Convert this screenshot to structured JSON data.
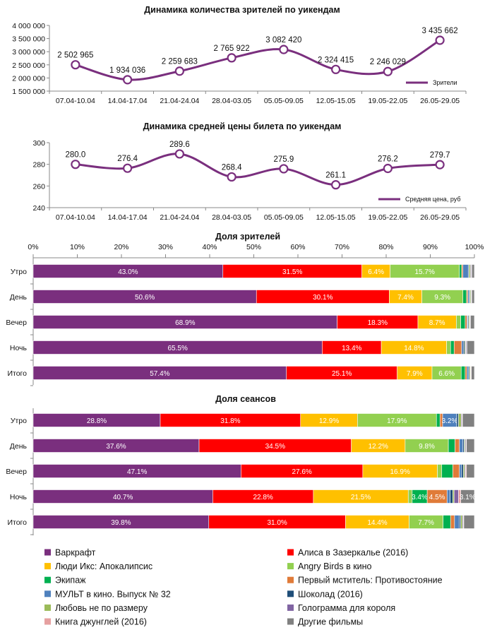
{
  "chart_data": [
    {
      "type": "line",
      "title": "Динамика количества зрителей по уикендам",
      "categories": [
        "07.04-10.04",
        "14.04-17.04",
        "21.04-24.04",
        "28.04-03.05",
        "05.05-09.05",
        "12.05-15.05",
        "19.05-22.05",
        "26.05-29.05"
      ],
      "values": [
        2502965,
        1934036,
        2259683,
        2765922,
        3082420,
        2324415,
        2246029,
        3435662
      ],
      "value_labels": [
        "2 502 965",
        "1 934 036",
        "2 259 683",
        "2 765 922",
        "3 082 420",
        "2 324 415",
        "2 246 029",
        "3 435 662"
      ],
      "yticks": [
        "4 000 000",
        "3 500 000",
        "3 000 000",
        "2 500 000",
        "2 000 000",
        "1 500 000"
      ],
      "ylim": [
        1500000,
        4000000
      ],
      "legend": "Зрители",
      "color": "#7a2f7e"
    },
    {
      "type": "line",
      "title": "Динамика средней цены билета по уикендам",
      "categories": [
        "07.04-10.04",
        "14.04-17.04",
        "21.04-24.04",
        "28.04-03.05",
        "05.05-09.05",
        "12.05-15.05",
        "19.05-22.05",
        "26.05-29.05"
      ],
      "values": [
        280.0,
        276.4,
        289.6,
        268.4,
        275.9,
        261.1,
        276.2,
        279.7
      ],
      "value_labels": [
        "280.0",
        "276.4",
        "289.6",
        "268.4",
        "275.9",
        "261.1",
        "276.2",
        "279.7"
      ],
      "yticks": [
        "300",
        "280",
        "260",
        "240"
      ],
      "ylim": [
        240,
        300
      ],
      "legend": "Средняя цена, руб",
      "color": "#7a2f7e"
    },
    {
      "type": "bar",
      "orientation": "horizontal-stacked-100",
      "title": "Доля зрителей",
      "xticks": [
        "0%",
        "10%",
        "20%",
        "30%",
        "40%",
        "50%",
        "60%",
        "70%",
        "80%",
        "90%",
        "100%"
      ],
      "categories": [
        "Утро",
        "День",
        "Вечер",
        "Ночь",
        "Итого"
      ],
      "rows": [
        {
          "values": [
            43.0,
            31.5,
            6.4,
            15.7,
            0.5,
            0.3,
            1.2,
            0.2,
            0.3,
            0.2,
            0.1,
            0.6
          ],
          "labels": [
            "43.0%",
            "31.5%",
            "6.4%",
            "15.7%",
            "",
            "",
            "",
            "",
            "",
            "",
            "",
            ""
          ]
        },
        {
          "values": [
            50.6,
            30.1,
            7.4,
            9.3,
            0.8,
            0.3,
            0.3,
            0.2,
            0.2,
            0.1,
            0.1,
            0.6
          ],
          "labels": [
            "50.6%",
            "30.1%",
            "7.4%",
            "9.3%",
            "",
            "",
            "",
            "",
            "",
            "",
            "",
            ""
          ]
        },
        {
          "values": [
            68.9,
            18.3,
            8.7,
            1.0,
            1.0,
            0.4,
            0.2,
            0.2,
            0.2,
            0.1,
            0.1,
            0.9
          ],
          "labels": [
            "68.9%",
            "18.3%",
            "8.7%",
            "",
            "",
            "",
            "",
            "",
            "",
            "",
            "",
            ""
          ]
        },
        {
          "values": [
            65.5,
            13.4,
            14.8,
            0.9,
            0.8,
            1.7,
            0.4,
            0.3,
            0.2,
            0.2,
            0.1,
            1.7
          ],
          "labels": [
            "65.5%",
            "13.4%",
            "14.8%",
            "",
            "",
            "",
            "",
            "",
            "",
            "",
            "",
            ""
          ]
        },
        {
          "values": [
            57.4,
            25.1,
            7.9,
            6.6,
            0.9,
            0.4,
            0.4,
            0.2,
            0.2,
            0.1,
            0.1,
            0.7
          ],
          "labels": [
            "57.4%",
            "25.1%",
            "7.9%",
            "6.6%",
            "",
            "",
            "",
            "",
            "",
            "",
            "",
            ""
          ]
        }
      ]
    },
    {
      "type": "bar",
      "orientation": "horizontal-stacked-100",
      "title": "Доля сеансов",
      "categories": [
        "Утро",
        "День",
        "Вечер",
        "Ночь",
        "Итого"
      ],
      "rows": [
        {
          "values": [
            28.8,
            31.8,
            12.9,
            17.9,
            0.8,
            0.6,
            3.2,
            0.4,
            0.6,
            0.2,
            0.1,
            2.7
          ],
          "labels": [
            "28.8%",
            "31.8%",
            "12.9%",
            "17.9%",
            "",
            "",
            "3.2%",
            "",
            "",
            "",
            "",
            ""
          ]
        },
        {
          "values": [
            37.6,
            34.5,
            12.2,
            9.8,
            1.5,
            1.0,
            0.8,
            0.3,
            0.2,
            0.2,
            0.1,
            1.8
          ],
          "labels": [
            "37.6%",
            "34.5%",
            "12.2%",
            "9.8%",
            "",
            "",
            "",
            "",
            "",
            "",
            "",
            ""
          ]
        },
        {
          "values": [
            47.1,
            27.6,
            16.9,
            1.0,
            2.5,
            1.5,
            0.5,
            0.4,
            0.3,
            0.2,
            0.2,
            1.8
          ],
          "labels": [
            "47.1%",
            "27.6%",
            "16.9%",
            "",
            "",
            "",
            "",
            "",
            "",
            "",
            "",
            ""
          ]
        },
        {
          "values": [
            40.7,
            22.8,
            21.5,
            0.9,
            3.4,
            4.5,
            0.7,
            0.6,
            0.3,
            1.0,
            0.5,
            3.1
          ],
          "labels": [
            "40.7%",
            "22.8%",
            "21.5%",
            "",
            "3.4%",
            "4.5%",
            "",
            "",
            "",
            "",
            "",
            "3.1%"
          ]
        },
        {
          "values": [
            39.8,
            31.0,
            14.4,
            7.7,
            1.7,
            0.9,
            1.1,
            0.3,
            0.4,
            0.2,
            0.1,
            2.4
          ],
          "labels": [
            "39.8%",
            "31.0%",
            "14.4%",
            "7.7%",
            "",
            "",
            "",
            "",
            "",
            "",
            "",
            ""
          ]
        }
      ]
    }
  ],
  "series": [
    {
      "name": "Варкрафт",
      "color": "#7a2f7e"
    },
    {
      "name": "Алиса в Зазеркалье (2016)",
      "color": "#ff0000"
    },
    {
      "name": "Люди Икс: Апокалипсис",
      "color": "#ffc000"
    },
    {
      "name": "Angry Birds в кино",
      "color": "#92d050"
    },
    {
      "name": "Экипаж",
      "color": "#00b050"
    },
    {
      "name": "Первый мститель: Противостояние",
      "color": "#e07b39"
    },
    {
      "name": "МУЛЬТ в кино. Выпуск № 32",
      "color": "#4f81bd"
    },
    {
      "name": "Шоколад (2016)",
      "color": "#1f4e79"
    },
    {
      "name": "Любовь не по размеру",
      "color": "#9bbb59"
    },
    {
      "name": "Голограмма для короля",
      "color": "#8064a2"
    },
    {
      "name": "Книга джунглей (2016)",
      "color": "#e6a0a0"
    },
    {
      "name": "Другие фильмы",
      "color": "#808080"
    }
  ]
}
